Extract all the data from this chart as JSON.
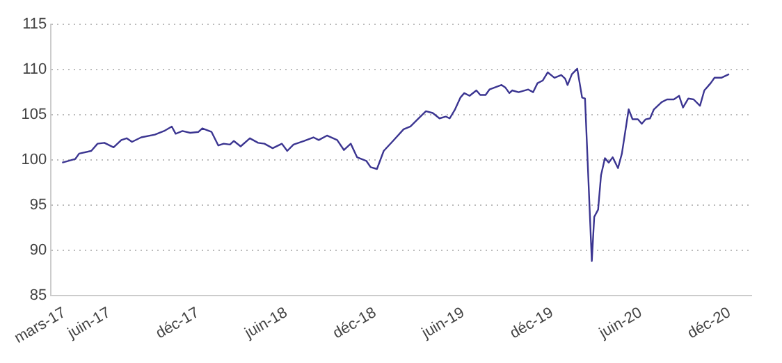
{
  "chart_data": {
    "type": "line",
    "x": [
      "2017-02-24",
      "2017-03-23",
      "2017-03-31",
      "2017-04-25",
      "2017-05-08",
      "2017-05-22",
      "2017-06-10",
      "2017-06-26",
      "2017-07-07",
      "2017-07-18",
      "2017-08-06",
      "2017-09-03",
      "2017-09-22",
      "2017-10-08",
      "2017-10-16",
      "2017-10-30",
      "2017-11-15",
      "2017-12-02",
      "2017-12-10",
      "2017-12-29",
      "2018-01-12",
      "2018-01-23",
      "2018-02-05",
      "2018-02-13",
      "2018-02-27",
      "2018-03-18",
      "2018-04-04",
      "2018-04-17",
      "2018-05-04",
      "2018-05-23",
      "2018-06-03",
      "2018-06-16",
      "2018-07-08",
      "2018-07-27",
      "2018-08-07",
      "2018-08-24",
      "2018-09-14",
      "2018-09-28",
      "2018-10-12",
      "2018-10-25",
      "2018-11-13",
      "2018-11-22",
      "2018-12-05",
      "2018-12-19",
      "2019-01-07",
      "2019-01-29",
      "2019-02-12",
      "2019-02-25",
      "2019-03-16",
      "2019-03-30",
      "2019-04-13",
      "2019-04-26",
      "2019-05-04",
      "2019-05-15",
      "2019-05-26",
      "2019-06-03",
      "2019-06-14",
      "2019-06-28",
      "2019-07-06",
      "2019-07-17",
      "2019-07-25",
      "2019-08-19",
      "2019-08-27",
      "2019-09-04",
      "2019-09-10",
      "2019-09-23",
      "2019-10-13",
      "2019-10-23",
      "2019-11-01",
      "2019-11-12",
      "2019-11-22",
      "2019-12-06",
      "2019-12-20",
      "2019-12-28",
      "2020-01-02",
      "2020-01-11",
      "2020-01-22",
      "2020-02-01",
      "2020-02-07",
      "2020-02-21",
      "2020-02-26",
      "2020-03-05",
      "2020-03-11",
      "2020-03-19",
      "2020-03-27",
      "2020-04-04",
      "2020-04-15",
      "2020-04-23",
      "2020-05-07",
      "2020-05-15",
      "2020-05-26",
      "2020-06-03",
      "2020-06-11",
      "2020-06-20",
      "2020-06-28",
      "2020-07-14",
      "2020-07-25",
      "2020-08-08",
      "2020-08-19",
      "2020-08-27",
      "2020-09-07",
      "2020-09-18",
      "2020-10-01",
      "2020-10-10",
      "2020-10-23",
      "2020-10-31",
      "2020-11-14",
      "2020-11-30"
    ],
    "series": [
      {
        "color": "#3b3591",
        "values": [
          99.7,
          100.1,
          100.7,
          101.0,
          101.8,
          101.9,
          101.4,
          102.2,
          102.4,
          102.0,
          102.5,
          102.8,
          103.2,
          103.7,
          102.9,
          103.2,
          103.0,
          103.1,
          103.5,
          103.1,
          101.6,
          101.8,
          101.7,
          102.1,
          101.5,
          102.4,
          101.9,
          101.8,
          101.3,
          101.8,
          101.0,
          101.7,
          102.1,
          102.5,
          102.2,
          102.7,
          102.2,
          101.1,
          101.8,
          100.3,
          99.9,
          99.2,
          99.0,
          101.0,
          102.1,
          103.4,
          103.7,
          104.4,
          105.4,
          105.2,
          104.6,
          104.8,
          104.6,
          105.6,
          106.9,
          107.4,
          107.1,
          107.7,
          107.2,
          107.2,
          107.8,
          108.3,
          108.0,
          107.4,
          107.7,
          107.5,
          107.8,
          107.5,
          108.5,
          108.8,
          109.7,
          109.1,
          109.4,
          109.0,
          108.3,
          109.5,
          110.1,
          106.9,
          106.8,
          88.8,
          93.7,
          94.5,
          98.3,
          100.2,
          99.7,
          100.3,
          99.1,
          100.7,
          105.6,
          104.5,
          104.5,
          104.0,
          104.5,
          104.6,
          105.6,
          106.4,
          106.7,
          106.7,
          107.1,
          105.8,
          106.8,
          106.7,
          106.0,
          107.7,
          108.5,
          109.1,
          109.1,
          109.5
        ]
      }
    ],
    "xlim": [
      "2017-02-01",
      "2021-01-15"
    ],
    "xticks": [
      {
        "value": "2017-03-01",
        "label": "mars-17"
      },
      {
        "value": "2017-06-01",
        "label": "juin-17"
      },
      {
        "value": "2017-12-01",
        "label": "déc-17"
      },
      {
        "value": "2018-06-01",
        "label": "juin-18"
      },
      {
        "value": "2018-12-01",
        "label": "déc-18"
      },
      {
        "value": "2019-06-01",
        "label": "juin-19"
      },
      {
        "value": "2019-12-01",
        "label": "déc-19"
      },
      {
        "value": "2020-06-01",
        "label": "juin-20"
      },
      {
        "value": "2020-12-01",
        "label": "déc-20"
      }
    ],
    "ylim": [
      85,
      115
    ],
    "yticks": [
      85,
      90,
      95,
      100,
      105,
      110,
      115
    ],
    "grid": "y",
    "marker": "none",
    "line_style": "solid"
  }
}
